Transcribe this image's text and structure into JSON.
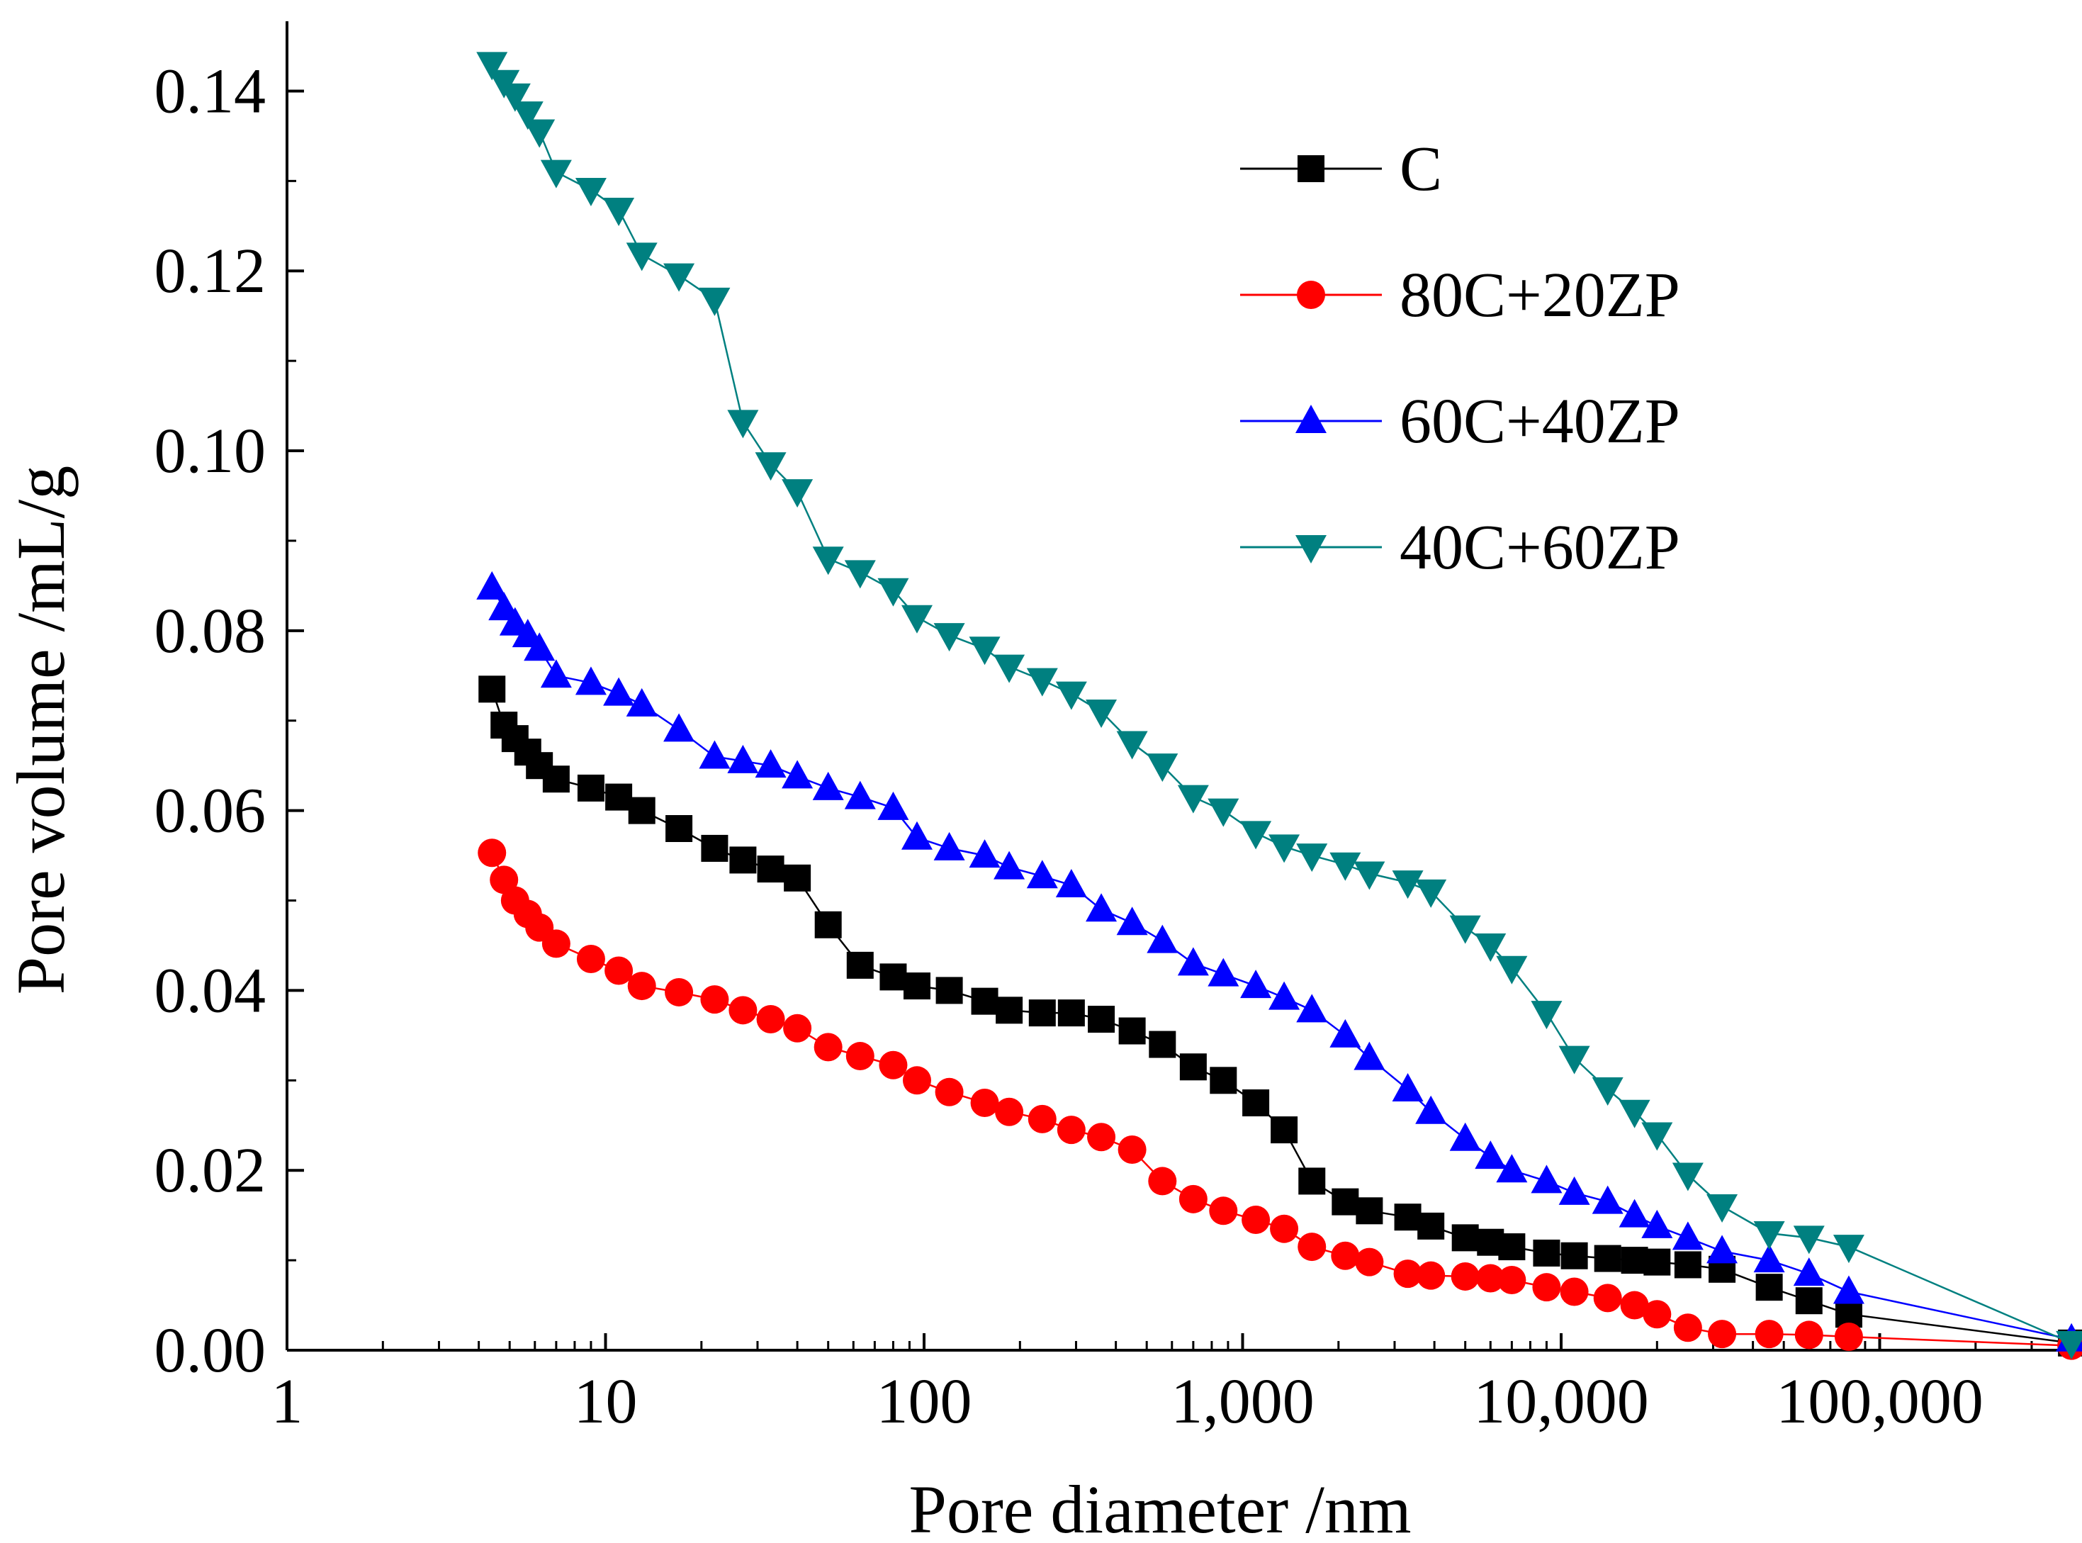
{
  "chart_data": {
    "type": "scatter",
    "xlabel": "Pore diameter /nm",
    "ylabel": "Pore volume /mL/g",
    "xscale": "log",
    "xlim": [
      1,
      400000
    ],
    "ylim": [
      0,
      0.145
    ],
    "xticks": [
      1,
      10,
      100,
      1000,
      10000,
      100000
    ],
    "xtick_labels": [
      "1",
      "10",
      "100",
      "1,000",
      "10,000",
      "100,000"
    ],
    "yticks": [
      0,
      0.02,
      0.04,
      0.06,
      0.08,
      0.1,
      0.12,
      0.14
    ],
    "ytick_labels": [
      "0.00",
      "0.02",
      "0.04",
      "0.06",
      "0.08",
      "0.10",
      "0.12",
      "0.14"
    ],
    "legend_position": "top-right",
    "series": [
      {
        "name": "C",
        "color": "#000000",
        "marker": "square",
        "x": [
          4.4,
          4.8,
          5.2,
          5.7,
          6.2,
          7,
          9,
          11,
          13,
          17,
          22,
          27,
          33,
          40,
          50,
          63,
          80,
          95,
          120,
          155,
          185,
          235,
          290,
          360,
          450,
          560,
          700,
          870,
          1100,
          1350,
          1650,
          2100,
          2500,
          3300,
          3900,
          5000,
          6000,
          7000,
          9000,
          11000,
          14000,
          17000,
          20000,
          25000,
          32000,
          45000,
          60000,
          80000,
          400000
        ],
        "y": [
          0.0735,
          0.0695,
          0.068,
          0.0665,
          0.065,
          0.0635,
          0.0625,
          0.0615,
          0.06,
          0.058,
          0.0558,
          0.0545,
          0.0535,
          0.0525,
          0.0473,
          0.0428,
          0.0415,
          0.0405,
          0.04,
          0.0388,
          0.0378,
          0.0375,
          0.0375,
          0.0368,
          0.0355,
          0.034,
          0.0315,
          0.03,
          0.0275,
          0.0245,
          0.0188,
          0.0165,
          0.0155,
          0.0148,
          0.0138,
          0.0125,
          0.012,
          0.0115,
          0.0108,
          0.0105,
          0.0102,
          0.01,
          0.0098,
          0.0095,
          0.009,
          0.007,
          0.0055,
          0.004,
          0.0008
        ]
      },
      {
        "name": "80C+20ZP",
        "color": "#ff0000",
        "marker": "circle",
        "x": [
          4.4,
          4.8,
          5.2,
          5.7,
          6.2,
          7,
          9,
          11,
          13,
          17,
          22,
          27,
          33,
          40,
          50,
          63,
          80,
          95,
          120,
          155,
          185,
          235,
          290,
          360,
          450,
          560,
          700,
          870,
          1100,
          1350,
          1650,
          2100,
          2500,
          3300,
          3900,
          5000,
          6000,
          7000,
          9000,
          11000,
          14000,
          17000,
          20000,
          25000,
          32000,
          45000,
          60000,
          80000,
          400000
        ],
        "y": [
          0.0553,
          0.0523,
          0.05,
          0.0485,
          0.047,
          0.0452,
          0.0435,
          0.0422,
          0.0405,
          0.0398,
          0.039,
          0.0378,
          0.0368,
          0.0358,
          0.0337,
          0.0327,
          0.0317,
          0.03,
          0.0287,
          0.0275,
          0.0265,
          0.0257,
          0.0245,
          0.0237,
          0.0223,
          0.0188,
          0.0168,
          0.0155,
          0.0145,
          0.0135,
          0.0115,
          0.0105,
          0.0098,
          0.0085,
          0.0083,
          0.0082,
          0.008,
          0.0078,
          0.007,
          0.0065,
          0.0058,
          0.005,
          0.004,
          0.0025,
          0.0018,
          0.0018,
          0.0017,
          0.0015,
          0.0005
        ]
      },
      {
        "name": "60C+40ZP",
        "color": "#0000ff",
        "marker": "triangle-up",
        "x": [
          4.4,
          4.8,
          5.2,
          5.7,
          6.2,
          7,
          9,
          11,
          13,
          17,
          22,
          27,
          33,
          40,
          50,
          63,
          80,
          95,
          120,
          155,
          185,
          235,
          290,
          360,
          450,
          560,
          700,
          870,
          1100,
          1350,
          1650,
          2100,
          2500,
          3300,
          3900,
          5000,
          6000,
          7000,
          9000,
          11000,
          14000,
          17000,
          20000,
          25000,
          32000,
          45000,
          60000,
          80000,
          400000
        ],
        "y": [
          0.0848,
          0.0825,
          0.0808,
          0.0795,
          0.078,
          0.075,
          0.0742,
          0.073,
          0.0718,
          0.069,
          0.066,
          0.0655,
          0.065,
          0.0638,
          0.0625,
          0.0615,
          0.0603,
          0.057,
          0.0558,
          0.055,
          0.0537,
          0.0527,
          0.0517,
          0.049,
          0.0475,
          0.0455,
          0.043,
          0.0418,
          0.0405,
          0.0392,
          0.0378,
          0.035,
          0.0325,
          0.029,
          0.0265,
          0.0235,
          0.0215,
          0.02,
          0.0188,
          0.0175,
          0.0165,
          0.015,
          0.0138,
          0.0125,
          0.011,
          0.01,
          0.0085,
          0.0065,
          0.0012
        ]
      },
      {
        "name": "40C+60ZP",
        "color": "#008080",
        "marker": "triangle-down",
        "x": [
          4.4,
          4.8,
          5.2,
          5.7,
          6.2,
          7,
          9,
          11,
          13,
          17,
          22,
          27,
          33,
          40,
          50,
          63,
          80,
          95,
          120,
          155,
          185,
          235,
          290,
          360,
          450,
          560,
          700,
          870,
          1100,
          1350,
          1650,
          2100,
          2500,
          3300,
          3900,
          5000,
          6000,
          7000,
          9000,
          11000,
          14000,
          17000,
          20000,
          25000,
          32000,
          45000,
          60000,
          80000,
          400000
        ],
        "y": [
          0.143,
          0.141,
          0.1395,
          0.1375,
          0.1355,
          0.131,
          0.129,
          0.1268,
          0.1218,
          0.1195,
          0.1168,
          0.1032,
          0.0985,
          0.0955,
          0.088,
          0.0865,
          0.0845,
          0.0815,
          0.0795,
          0.078,
          0.076,
          0.0745,
          0.073,
          0.071,
          0.0675,
          0.065,
          0.0615,
          0.06,
          0.0575,
          0.056,
          0.055,
          0.054,
          0.053,
          0.052,
          0.051,
          0.047,
          0.045,
          0.0425,
          0.0375,
          0.0325,
          0.029,
          0.0265,
          0.024,
          0.0195,
          0.016,
          0.013,
          0.0125,
          0.0115,
          0.0008
        ]
      }
    ]
  }
}
